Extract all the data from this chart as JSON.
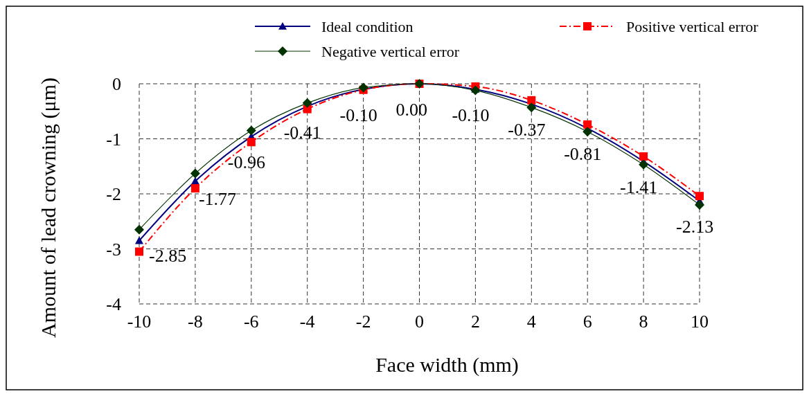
{
  "chart_data": {
    "type": "line",
    "xlabel": "Face width (mm)",
    "ylabel": "Amount of lead crowning (μm)",
    "x": [
      -10,
      -8,
      -6,
      -4,
      -2,
      0,
      2,
      4,
      6,
      8,
      10
    ],
    "xlim": [
      -10,
      10
    ],
    "xticks": [
      -10,
      -8,
      -6,
      -4,
      -2,
      0,
      2,
      4,
      6,
      8,
      10
    ],
    "ylim": [
      -4,
      0
    ],
    "yticks": [
      -4,
      -3,
      -2,
      -1,
      0
    ],
    "grid": true,
    "legend": "top",
    "series": [
      {
        "name": "Ideal condition",
        "color": "#000080",
        "marker": "triangle",
        "line_style": "solid",
        "values": [
          -2.85,
          -1.77,
          -0.96,
          -0.41,
          -0.1,
          0.0,
          -0.1,
          -0.37,
          -0.81,
          -1.41,
          -2.13
        ],
        "value_labels": [
          "-2.85",
          "-1.77",
          "-0.96",
          "-0.41",
          "-0.10",
          "0.00",
          "-0.10",
          "-0.37",
          "-0.81",
          "-1.41",
          "-2.13"
        ]
      },
      {
        "name": "Positive vertical error",
        "color": "#ff0000",
        "marker": "square",
        "line_style": "dashed",
        "values": [
          -3.05,
          -1.9,
          -1.06,
          -0.46,
          -0.11,
          0.0,
          -0.05,
          -0.3,
          -0.74,
          -1.32,
          -2.04
        ]
      },
      {
        "name": "Negative vertical error",
        "color": "#003300",
        "marker": "diamond",
        "line_style": "solid",
        "values": [
          -2.65,
          -1.63,
          -0.85,
          -0.35,
          -0.07,
          0.0,
          -0.12,
          -0.43,
          -0.87,
          -1.47,
          -2.2
        ]
      }
    ]
  }
}
